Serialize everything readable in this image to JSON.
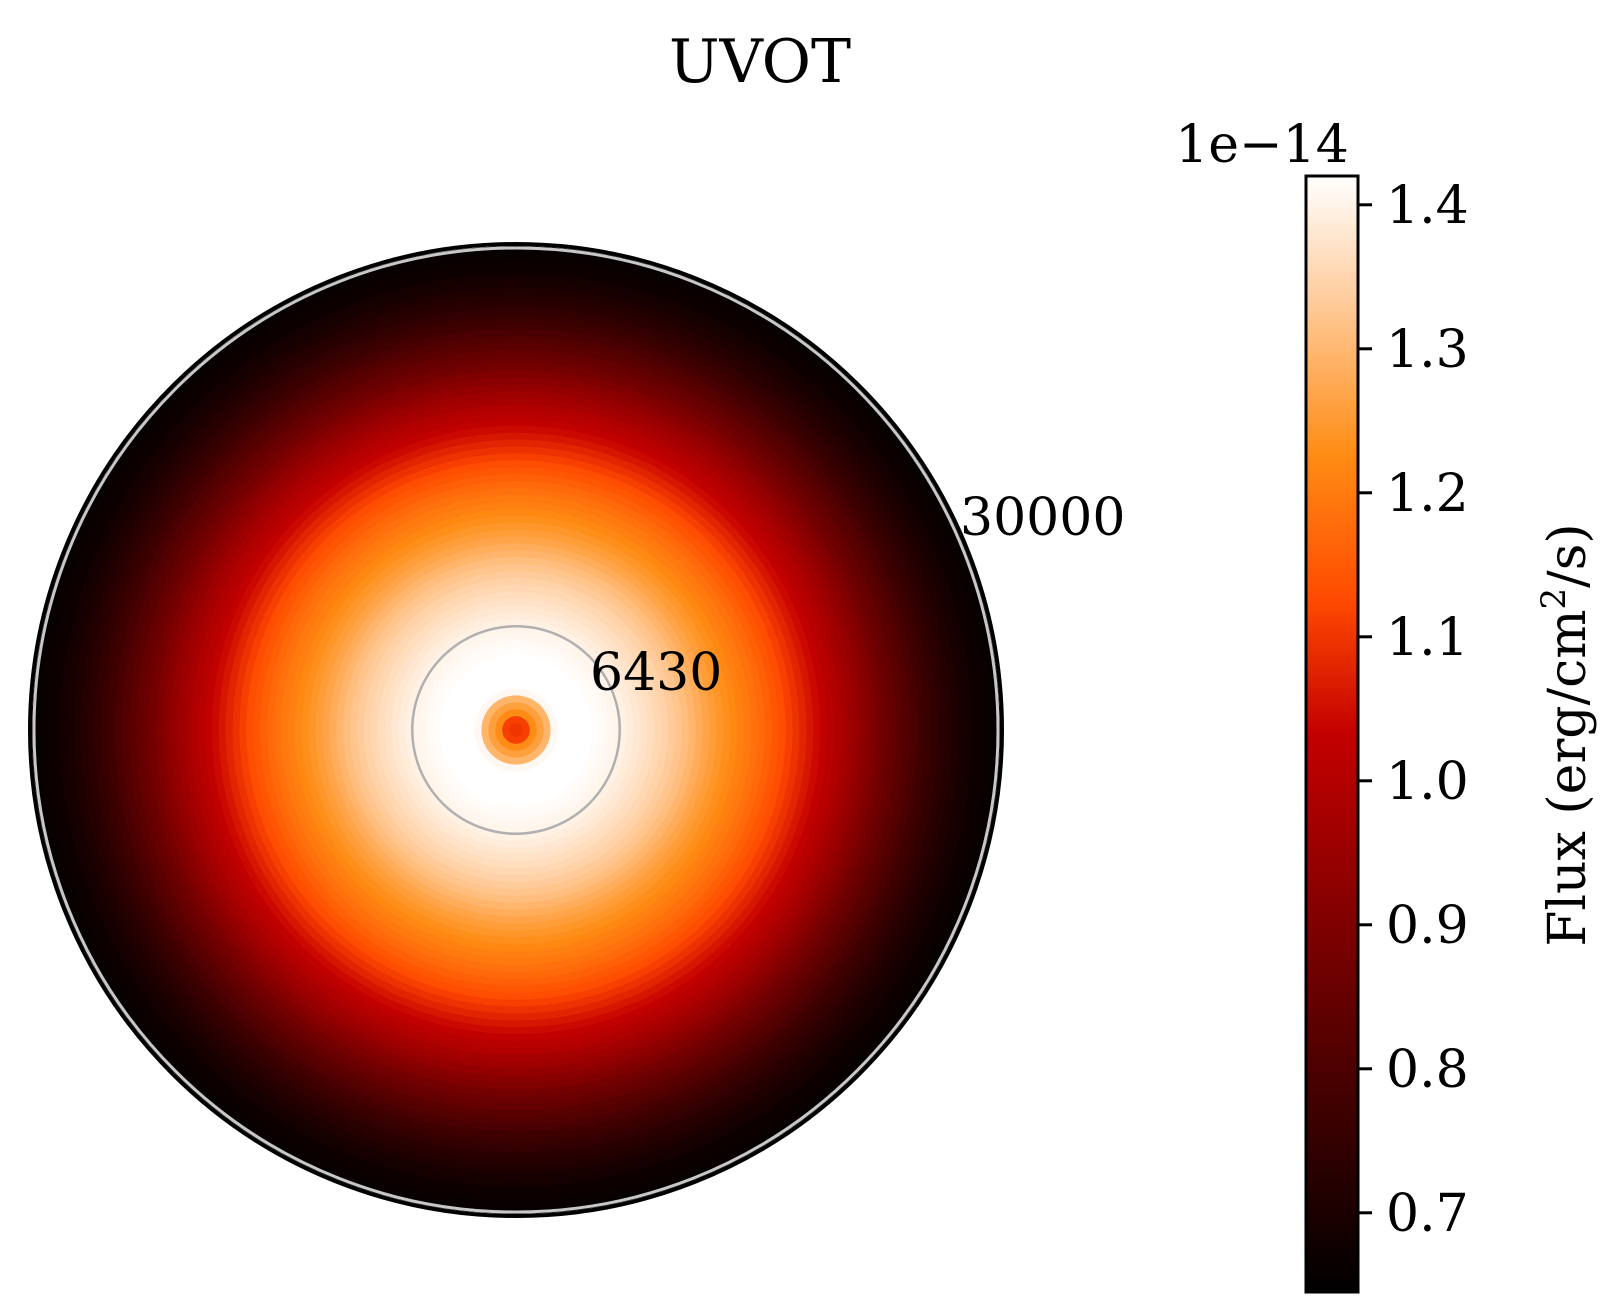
{
  "chart_data": {
    "type": "heatmap",
    "projection": "polar",
    "title": "UVOT",
    "radial_ticks": [
      "6430",
      "30000"
    ],
    "radial_tick_values": [
      6430,
      30000
    ],
    "r_max": 30000,
    "colormap": "gist_heat",
    "colorbar": {
      "label": "Flux (erg/cm",
      "label_sup": "2",
      "label_end": "/s)",
      "offset_text": "1e−14",
      "vmin": 0.645,
      "vmax": 1.42,
      "ticks": [
        0.7,
        0.8,
        0.9,
        1.0,
        1.1,
        1.2,
        1.3,
        1.4
      ],
      "tick_labels": [
        "0.7",
        "0.8",
        "0.9",
        "1.0",
        "1.1",
        "1.2",
        "1.3",
        "1.4"
      ]
    },
    "radial_profile": {
      "r": [
        0,
        600,
        1200,
        1800,
        2400,
        3000,
        3600,
        4500,
        5500,
        6430,
        7500,
        9000,
        10500,
        12000,
        13500,
        15000,
        16500,
        18000,
        19500,
        21000,
        22500,
        24000,
        25500,
        27000,
        28500,
        30000
      ],
      "flux": [
        1.1,
        1.1,
        1.26,
        1.26,
        1.42,
        1.42,
        1.42,
        1.42,
        1.41,
        1.4,
        1.38,
        1.35,
        1.31,
        1.26,
        1.22,
        1.18,
        1.13,
        1.07,
        1.01,
        0.95,
        0.88,
        0.82,
        0.76,
        0.71,
        0.675,
        0.655
      ]
    }
  }
}
